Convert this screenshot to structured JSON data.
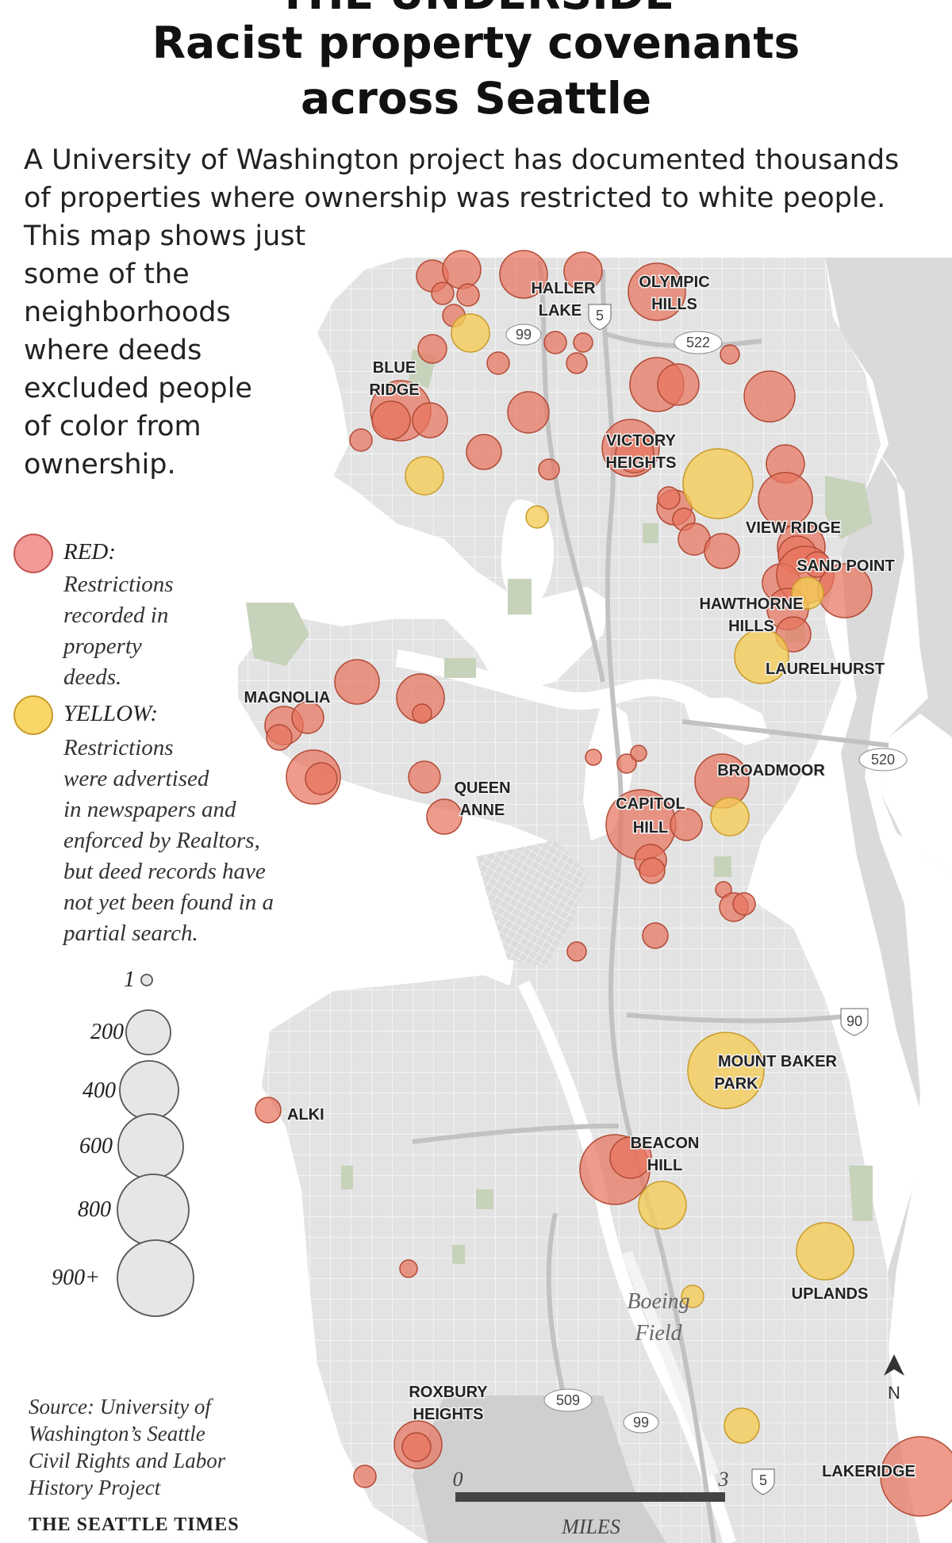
{
  "header": {
    "kicker": "THE UNDERSIDE",
    "title_line1": "Racist property covenants",
    "title_line2": "across Seattle",
    "intro_line1": "A University of Washington project has documented thousands",
    "intro_line2": "of properties where ownership was restricted to white people.",
    "intro_side": [
      "This map shows just",
      "some of the",
      "neighborhoods",
      "where deeds",
      "excluded people",
      "of color from",
      "ownership."
    ]
  },
  "legend": {
    "red_title": "RED:",
    "red_text": [
      "Restrictions",
      "recorded in",
      "property",
      "deeds."
    ],
    "yellow_title": "YELLOW:",
    "yellow_text": [
      "Restrictions",
      "were advertised",
      "in newspapers and",
      "enforced by Realtors,",
      "but deed records have",
      "not yet been found in a",
      "partial search."
    ],
    "sizes": [
      "1",
      "200",
      "400",
      "600",
      "800",
      "900+"
    ],
    "colors": {
      "red": "#e8755e",
      "yellow": "#f5cc55"
    }
  },
  "places": [
    "HALLER",
    "LAKE",
    "OLYMPIC",
    "HILLS",
    "BLUE",
    "RIDGE",
    "VICTORY",
    "HEIGHTS",
    "VIEW RIDGE",
    "SAND POINT",
    "HAWTHORNE",
    "HILLS",
    "LAURELHURST",
    "MAGNOLIA",
    "QUEEN",
    "ANNE",
    "BROADMOOR",
    "CAPITOL",
    "HILL",
    "MOUNT BAKER",
    "PARK",
    "ALKI",
    "BEACON",
    "HILL",
    "UPLANDS",
    "ROXBURY",
    "HEIGHTS",
    "LAKERIDGE"
  ],
  "highways": [
    "99",
    "5",
    "522",
    "520",
    "90",
    "509",
    "99",
    "5"
  ],
  "map_labels": {
    "boeing": "Boeing",
    "field": "Field",
    "north": "N"
  },
  "scale": {
    "zero": "0",
    "three": "3",
    "unit": "MILES"
  },
  "footer": {
    "source": [
      "Source: University of",
      "Washington’s Seattle",
      "Civil Rights and Labor",
      "History Project"
    ],
    "credit": "THE SEATTLE TIMES"
  }
}
